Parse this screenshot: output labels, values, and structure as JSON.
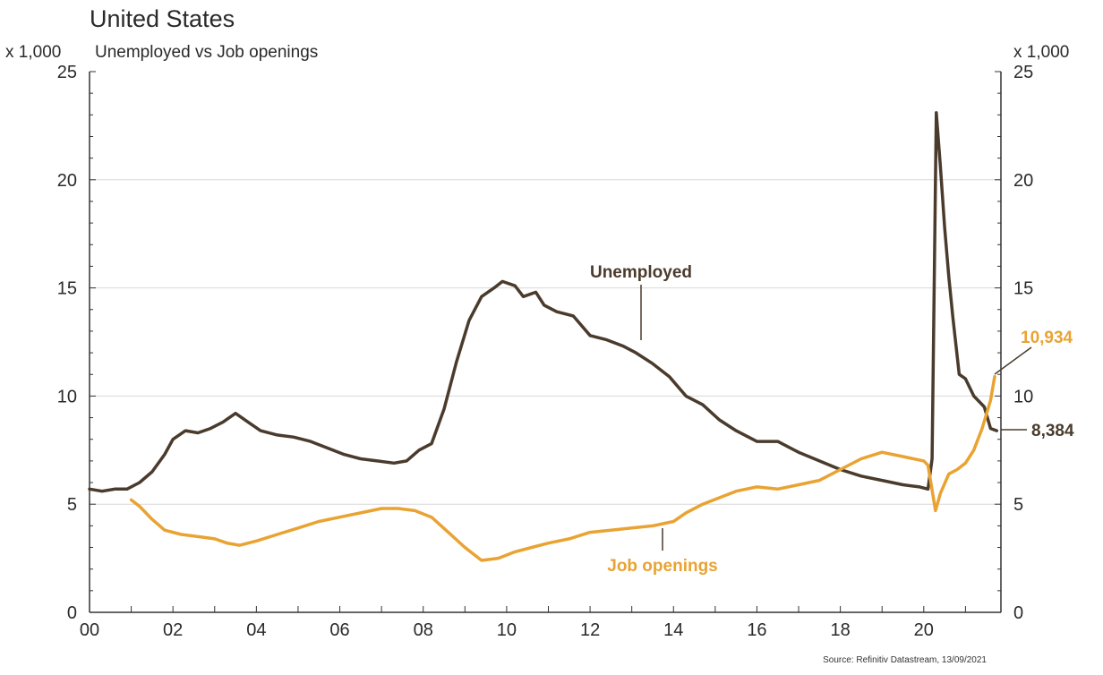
{
  "chart_data": {
    "type": "line",
    "title": "United States",
    "subtitle": "Unemployed vs Job openings",
    "ylabel_left": "x 1,000",
    "ylabel_right": "x 1,000",
    "ylim": [
      0,
      25
    ],
    "xlim": [
      2000,
      2021.85
    ],
    "y_ticks": [
      0,
      5,
      10,
      15,
      20,
      25
    ],
    "x_ticks": [
      {
        "value": 2000,
        "label": "00"
      },
      {
        "value": 2002,
        "label": "02"
      },
      {
        "value": 2004,
        "label": "04"
      },
      {
        "value": 2006,
        "label": "06"
      },
      {
        "value": 2008,
        "label": "08"
      },
      {
        "value": 2010,
        "label": "10"
      },
      {
        "value": 2012,
        "label": "12"
      },
      {
        "value": 2014,
        "label": "14"
      },
      {
        "value": 2016,
        "label": "16"
      },
      {
        "value": 2018,
        "label": "18"
      },
      {
        "value": 2020,
        "label": "20"
      }
    ],
    "grid": true,
    "source": "Source: Refinitiv Datastream, 13/09/2021",
    "series": [
      {
        "name": "Unemployed",
        "color": "#4a3b2c",
        "end_label": "8,384",
        "points": [
          [
            2000.0,
            5.7
          ],
          [
            2000.3,
            5.6
          ],
          [
            2000.6,
            5.7
          ],
          [
            2000.9,
            5.7
          ],
          [
            2001.2,
            6.0
          ],
          [
            2001.5,
            6.5
          ],
          [
            2001.8,
            7.3
          ],
          [
            2002.0,
            8.0
          ],
          [
            2002.3,
            8.4
          ],
          [
            2002.6,
            8.3
          ],
          [
            2002.9,
            8.5
          ],
          [
            2003.2,
            8.8
          ],
          [
            2003.5,
            9.2
          ],
          [
            2003.8,
            8.8
          ],
          [
            2004.1,
            8.4
          ],
          [
            2004.5,
            8.2
          ],
          [
            2004.9,
            8.1
          ],
          [
            2005.3,
            7.9
          ],
          [
            2005.7,
            7.6
          ],
          [
            2006.1,
            7.3
          ],
          [
            2006.5,
            7.1
          ],
          [
            2006.9,
            7.0
          ],
          [
            2007.3,
            6.9
          ],
          [
            2007.6,
            7.0
          ],
          [
            2007.9,
            7.5
          ],
          [
            2008.2,
            7.8
          ],
          [
            2008.5,
            9.4
          ],
          [
            2008.8,
            11.6
          ],
          [
            2009.1,
            13.5
          ],
          [
            2009.4,
            14.6
          ],
          [
            2009.7,
            15.0
          ],
          [
            2009.9,
            15.3
          ],
          [
            2010.2,
            15.1
          ],
          [
            2010.4,
            14.6
          ],
          [
            2010.7,
            14.8
          ],
          [
            2010.9,
            14.2
          ],
          [
            2011.2,
            13.9
          ],
          [
            2011.6,
            13.7
          ],
          [
            2012.0,
            12.8
          ],
          [
            2012.4,
            12.6
          ],
          [
            2012.8,
            12.3
          ],
          [
            2013.1,
            12.0
          ],
          [
            2013.5,
            11.5
          ],
          [
            2013.9,
            10.9
          ],
          [
            2014.3,
            10.0
          ],
          [
            2014.7,
            9.6
          ],
          [
            2015.1,
            8.9
          ],
          [
            2015.5,
            8.4
          ],
          [
            2016.0,
            7.9
          ],
          [
            2016.5,
            7.9
          ],
          [
            2017.0,
            7.4
          ],
          [
            2017.5,
            7.0
          ],
          [
            2018.0,
            6.6
          ],
          [
            2018.5,
            6.3
          ],
          [
            2019.0,
            6.1
          ],
          [
            2019.5,
            5.9
          ],
          [
            2019.9,
            5.8
          ],
          [
            2020.1,
            5.7
          ],
          [
            2020.2,
            7.1
          ],
          [
            2020.3,
            23.1
          ],
          [
            2020.4,
            20.6
          ],
          [
            2020.5,
            17.8
          ],
          [
            2020.6,
            15.5
          ],
          [
            2020.7,
            13.6
          ],
          [
            2020.85,
            11.0
          ],
          [
            2021.0,
            10.8
          ],
          [
            2021.2,
            10.0
          ],
          [
            2021.45,
            9.5
          ],
          [
            2021.6,
            8.5
          ],
          [
            2021.75,
            8.4
          ]
        ]
      },
      {
        "name": "Job openings",
        "color": "#e9a332",
        "end_label": "10,934",
        "points": [
          [
            2001.0,
            5.2
          ],
          [
            2001.2,
            4.9
          ],
          [
            2001.5,
            4.3
          ],
          [
            2001.8,
            3.8
          ],
          [
            2002.2,
            3.6
          ],
          [
            2002.6,
            3.5
          ],
          [
            2003.0,
            3.4
          ],
          [
            2003.3,
            3.2
          ],
          [
            2003.6,
            3.1
          ],
          [
            2004.0,
            3.3
          ],
          [
            2004.5,
            3.6
          ],
          [
            2005.0,
            3.9
          ],
          [
            2005.5,
            4.2
          ],
          [
            2006.0,
            4.4
          ],
          [
            2006.5,
            4.6
          ],
          [
            2007.0,
            4.8
          ],
          [
            2007.4,
            4.8
          ],
          [
            2007.8,
            4.7
          ],
          [
            2008.2,
            4.4
          ],
          [
            2008.6,
            3.7
          ],
          [
            2009.0,
            3.0
          ],
          [
            2009.4,
            2.4
          ],
          [
            2009.8,
            2.5
          ],
          [
            2010.2,
            2.8
          ],
          [
            2010.6,
            3.0
          ],
          [
            2011.0,
            3.2
          ],
          [
            2011.5,
            3.4
          ],
          [
            2012.0,
            3.7
          ],
          [
            2012.5,
            3.8
          ],
          [
            2013.0,
            3.9
          ],
          [
            2013.5,
            4.0
          ],
          [
            2014.0,
            4.2
          ],
          [
            2014.3,
            4.6
          ],
          [
            2014.7,
            5.0
          ],
          [
            2015.1,
            5.3
          ],
          [
            2015.5,
            5.6
          ],
          [
            2016.0,
            5.8
          ],
          [
            2016.5,
            5.7
          ],
          [
            2017.0,
            5.9
          ],
          [
            2017.5,
            6.1
          ],
          [
            2018.0,
            6.6
          ],
          [
            2018.5,
            7.1
          ],
          [
            2019.0,
            7.4
          ],
          [
            2019.5,
            7.2
          ],
          [
            2020.0,
            7.0
          ],
          [
            2020.1,
            6.8
          ],
          [
            2020.28,
            4.7
          ],
          [
            2020.4,
            5.5
          ],
          [
            2020.6,
            6.4
          ],
          [
            2020.8,
            6.6
          ],
          [
            2021.0,
            6.9
          ],
          [
            2021.2,
            7.5
          ],
          [
            2021.4,
            8.5
          ],
          [
            2021.6,
            9.8
          ],
          [
            2021.7,
            10.9
          ]
        ]
      }
    ]
  }
}
